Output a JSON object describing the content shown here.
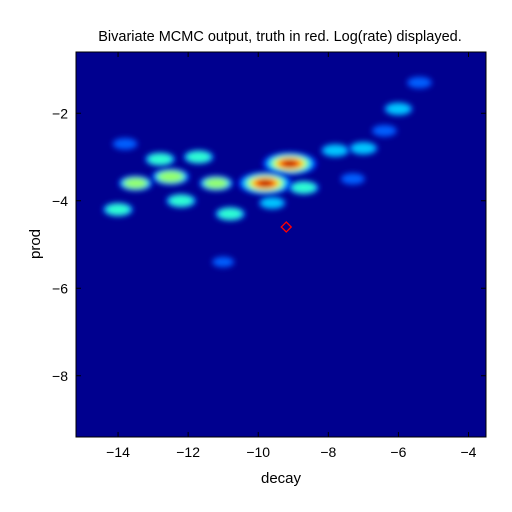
{
  "chart_data": {
    "type": "heatmap",
    "title": "Bivariate MCMC output, truth in red. Log(rate) displayed.",
    "xlabel": "decay",
    "ylabel": "prod",
    "xlim": [
      -15.2,
      -3.5
    ],
    "ylim": [
      -9.4,
      -0.6
    ],
    "xticks": [
      -14,
      -12,
      -10,
      -8,
      -6,
      -4
    ],
    "yticks": [
      -8,
      -6,
      -4,
      -2
    ],
    "xtick_labels": [
      "−14",
      "−12",
      "−10",
      "−8",
      "−6",
      "−4"
    ],
    "ytick_labels": [
      "−8",
      "−6",
      "−4",
      "−2"
    ],
    "colormap": "jet",
    "background_color": "#00008f",
    "grid": false,
    "density_peaks": [
      {
        "x": -9.1,
        "y": -3.15,
        "w": 1.0
      },
      {
        "x": -9.8,
        "y": -3.6,
        "w": 1.0
      },
      {
        "x": -12.5,
        "y": -3.45,
        "w": 0.55
      },
      {
        "x": -13.5,
        "y": -3.6,
        "w": 0.45
      },
      {
        "x": -11.2,
        "y": -3.6,
        "w": 0.45
      },
      {
        "x": -12.8,
        "y": -3.05,
        "w": 0.35
      },
      {
        "x": -11.7,
        "y": -3.0,
        "w": 0.35
      },
      {
        "x": -8.7,
        "y": -3.7,
        "w": 0.35
      },
      {
        "x": -12.2,
        "y": -4.0,
        "w": 0.35
      },
      {
        "x": -10.8,
        "y": -4.3,
        "w": 0.35
      },
      {
        "x": -14.0,
        "y": -4.2,
        "w": 0.35
      },
      {
        "x": -7.8,
        "y": -2.85,
        "w": 0.3
      },
      {
        "x": -7.0,
        "y": -2.8,
        "w": 0.3
      },
      {
        "x": -6.0,
        "y": -1.9,
        "w": 0.3
      },
      {
        "x": -9.6,
        "y": -4.05,
        "w": 0.25
      },
      {
        "x": -13.8,
        "y": -2.7,
        "w": 0.2
      },
      {
        "x": -6.4,
        "y": -2.4,
        "w": 0.2
      },
      {
        "x": -5.4,
        "y": -1.3,
        "w": 0.2
      },
      {
        "x": -7.3,
        "y": -3.5,
        "w": 0.18
      },
      {
        "x": -11.0,
        "y": -5.4,
        "w": 0.12
      }
    ],
    "truth": {
      "x": -9.2,
      "y": -4.6,
      "color": "#ff0000",
      "marker": "diamond"
    }
  }
}
